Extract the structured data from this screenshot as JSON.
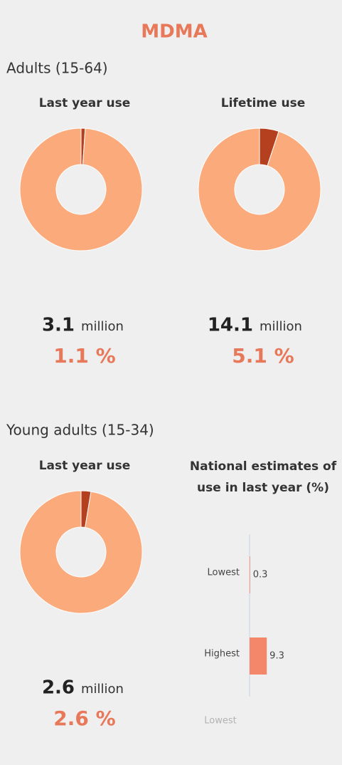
{
  "title": "MDMA",
  "sections": [
    {
      "heading": "Adults (15-64)"
    },
    {
      "heading": "Young adults (15-34)"
    }
  ],
  "footer_label": "Lowest",
  "chart_data": [
    {
      "type": "donut",
      "title": "Last year use",
      "values": [
        1.1,
        98.9
      ],
      "value_labels": [
        "1.1 %",
        null
      ],
      "colors": [
        "#b5401f",
        "#fbaa7c"
      ],
      "count": 3.1,
      "count_unit": "million"
    },
    {
      "type": "donut",
      "title": "Lifetime use",
      "values": [
        5.1,
        94.9
      ],
      "value_labels": [
        "5.1 %",
        null
      ],
      "colors": [
        "#b5401f",
        "#fbaa7c"
      ],
      "count": 14.1,
      "count_unit": "million"
    },
    {
      "type": "donut",
      "title": "Last year use",
      "values": [
        2.6,
        97.4
      ],
      "value_labels": [
        "2.6 %",
        null
      ],
      "colors": [
        "#b5401f",
        "#fbaa7c"
      ],
      "count": 2.6,
      "count_unit": "million"
    },
    {
      "type": "bar",
      "orientation": "horizontal",
      "title": "National estimates of use in last year (%)",
      "categories": [
        "Lowest",
        "Highest"
      ],
      "values": [
        0.3,
        9.3
      ],
      "color": "#f4876a",
      "xlim": [
        0,
        50
      ]
    }
  ]
}
